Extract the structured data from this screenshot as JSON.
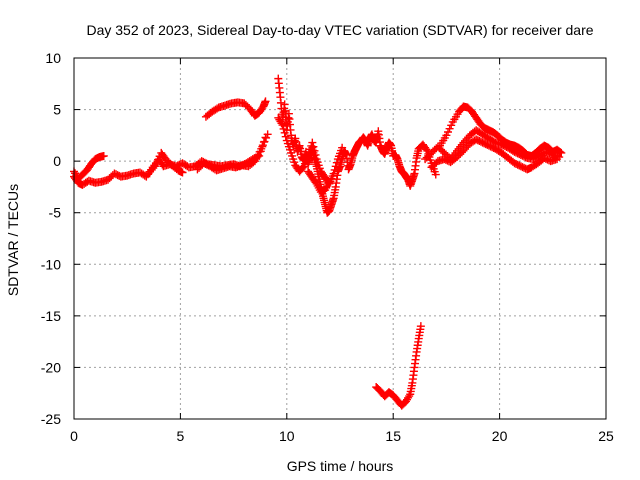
{
  "chart_data": {
    "type": "scatter",
    "title": "Day 352 of 2023, Sidereal Day-to-day VTEC variation (SDTVAR) for receiver dare",
    "xlabel": "GPS time / hours",
    "ylabel": "SDTVAR / TECUs",
    "xlim": [
      0,
      25
    ],
    "ylim": [
      -25,
      10
    ],
    "xticks": [
      0,
      5,
      10,
      15,
      20,
      25
    ],
    "yticks": [
      -25,
      -20,
      -15,
      -10,
      -5,
      0,
      5,
      10
    ],
    "grid": true,
    "marker": "+",
    "series": [
      {
        "name": "SDTVAR",
        "color": "#ff0000",
        "segments": [
          [
            [
              0.0,
              -1.5
            ],
            [
              0.2,
              -2.1
            ],
            [
              0.4,
              -2.3
            ],
            [
              0.7,
              -1.9
            ],
            [
              1.0,
              -2.1
            ],
            [
              1.3,
              -2.0
            ],
            [
              1.6,
              -1.8
            ],
            [
              1.9,
              -1.2
            ],
            [
              2.2,
              -1.5
            ],
            [
              2.5,
              -1.4
            ],
            [
              2.8,
              -1.2
            ],
            [
              3.1,
              -1.1
            ],
            [
              3.4,
              -1.5
            ],
            [
              3.7,
              -0.6
            ],
            [
              4.0,
              0.2
            ],
            [
              4.2,
              -0.5
            ],
            [
              4.5,
              -0.3
            ],
            [
              4.8,
              -0.5
            ],
            [
              5.1,
              -0.2
            ],
            [
              5.4,
              -0.6
            ],
            [
              5.7,
              -0.5
            ],
            [
              6.0,
              0.0
            ],
            [
              6.3,
              -0.3
            ],
            [
              6.6,
              -0.4
            ],
            [
              6.9,
              -0.5
            ],
            [
              7.2,
              -0.4
            ],
            [
              7.5,
              -0.3
            ],
            [
              7.8,
              -0.5
            ],
            [
              8.1,
              -0.2
            ],
            [
              8.4,
              0.2
            ],
            [
              8.7,
              0.5
            ],
            [
              9.0,
              2.3
            ]
          ],
          [
            [
              0.0,
              -1.0
            ],
            [
              0.2,
              -1.7
            ],
            [
              0.4,
              -1.3
            ],
            [
              0.6,
              -0.9
            ],
            [
              0.8,
              -0.3
            ],
            [
              1.0,
              0.2
            ],
            [
              1.2,
              0.4
            ],
            [
              1.4,
              0.5
            ]
          ],
          [
            [
              3.5,
              -1.2
            ],
            [
              3.8,
              -0.5
            ],
            [
              4.1,
              0.8
            ],
            [
              4.3,
              0.2
            ],
            [
              4.6,
              -0.4
            ],
            [
              4.9,
              -0.9
            ],
            [
              5.1,
              -1.1
            ]
          ],
          [
            [
              5.8,
              -0.8
            ],
            [
              6.1,
              -0.2
            ],
            [
              6.4,
              -0.5
            ],
            [
              6.7,
              -0.9
            ],
            [
              7.0,
              -0.7
            ],
            [
              7.3,
              -0.5
            ],
            [
              7.6,
              -0.6
            ],
            [
              7.9,
              -0.4
            ],
            [
              8.2,
              -0.5
            ],
            [
              8.5,
              0.0
            ],
            [
              8.8,
              1.2
            ],
            [
              9.1,
              2.6
            ]
          ],
          [
            [
              6.2,
              4.3
            ],
            [
              6.5,
              4.8
            ],
            [
              6.8,
              5.2
            ],
            [
              7.1,
              5.4
            ],
            [
              7.4,
              5.6
            ],
            [
              7.7,
              5.7
            ],
            [
              8.0,
              5.6
            ],
            [
              8.3,
              5.0
            ],
            [
              8.5,
              4.4
            ],
            [
              8.7,
              4.7
            ],
            [
              8.9,
              5.3
            ],
            [
              9.0,
              5.8
            ]
          ],
          [
            [
              9.6,
              8.0
            ],
            [
              9.7,
              6.2
            ],
            [
              9.8,
              4.0
            ],
            [
              9.9,
              5.5
            ],
            [
              10.0,
              3.0
            ],
            [
              10.1,
              4.6
            ],
            [
              10.2,
              2.5
            ],
            [
              10.3,
              1.4
            ],
            [
              10.4,
              2.2
            ],
            [
              10.5,
              0.9
            ],
            [
              10.6,
              1.5
            ],
            [
              10.7,
              0.4
            ],
            [
              10.8,
              0.1
            ],
            [
              10.9,
              0.9
            ],
            [
              11.0,
              -0.3
            ],
            [
              11.1,
              0.4
            ],
            [
              11.2,
              1.3
            ],
            [
              11.3,
              0.3
            ],
            [
              11.4,
              -0.5
            ],
            [
              11.5,
              -1.5
            ],
            [
              11.6,
              -2.5
            ],
            [
              11.7,
              -3.4
            ],
            [
              11.8,
              -4.2
            ],
            [
              11.9,
              -5.0
            ],
            [
              12.0,
              -4.8
            ],
            [
              12.1,
              -4.2
            ],
            [
              12.2,
              -3.6
            ],
            [
              12.3,
              -2.5
            ],
            [
              12.4,
              -1.0
            ],
            [
              12.5,
              -0.5
            ],
            [
              12.6,
              0.3
            ],
            [
              12.7,
              1.0
            ],
            [
              12.8,
              0.6
            ],
            [
              12.9,
              -0.8
            ],
            [
              13.0,
              -0.3
            ],
            [
              13.1,
              0.5
            ],
            [
              13.2,
              1.0
            ],
            [
              13.3,
              1.4
            ],
            [
              13.4,
              1.8
            ],
            [
              13.5,
              2.0
            ],
            [
              13.6,
              2.3
            ],
            [
              13.7,
              2.0
            ],
            [
              13.8,
              1.5
            ],
            [
              13.9,
              2.2
            ],
            [
              14.0,
              2.6
            ],
            [
              14.1,
              2.0
            ],
            [
              14.2,
              1.8
            ],
            [
              14.3,
              2.9
            ],
            [
              14.4,
              1.5
            ],
            [
              14.5,
              1.0
            ],
            [
              14.6,
              0.7
            ],
            [
              14.7,
              1.3
            ],
            [
              14.8,
              1.8
            ],
            [
              14.9,
              1.5
            ],
            [
              15.0,
              0.5
            ],
            [
              15.1,
              0.6
            ],
            [
              15.2,
              0.2
            ],
            [
              15.3,
              -0.5
            ],
            [
              15.4,
              -1.0
            ],
            [
              15.5,
              -1.2
            ],
            [
              15.6,
              -1.5
            ],
            [
              15.7,
              -1.8
            ],
            [
              15.8,
              -2.4
            ],
            [
              15.9,
              -1.8
            ],
            [
              16.0,
              -1.2
            ],
            [
              16.1,
              0.3
            ],
            [
              16.2,
              1.2
            ],
            [
              16.4,
              1.6
            ],
            [
              16.6,
              1.0
            ],
            [
              16.8,
              -0.2
            ],
            [
              17.0,
              -1.3
            ]
          ],
          [
            [
              9.6,
              4.2
            ],
            [
              9.8,
              3.5
            ],
            [
              10.0,
              2.0
            ],
            [
              10.2,
              0.8
            ],
            [
              10.4,
              -0.4
            ],
            [
              10.6,
              -1.0
            ],
            [
              10.8,
              -0.5
            ],
            [
              11.0,
              0.5
            ],
            [
              11.2,
              1.8
            ],
            [
              11.4,
              0.2
            ],
            [
              11.6,
              -1.0
            ],
            [
              11.8,
              -1.6
            ],
            [
              12.0,
              -2.2
            ],
            [
              12.2,
              -1.2
            ],
            [
              12.4,
              0.2
            ],
            [
              12.6,
              1.3
            ]
          ],
          [
            [
              11.0,
              -1.0
            ],
            [
              11.2,
              -1.6
            ],
            [
              11.4,
              -2.2
            ],
            [
              11.6,
              -3.0
            ],
            [
              11.8,
              -2.8
            ],
            [
              12.0,
              -2.0
            ]
          ],
          [
            [
              16.5,
              0.2
            ],
            [
              16.8,
              0.8
            ],
            [
              17.1,
              1.4
            ],
            [
              17.4,
              0.8
            ],
            [
              17.7,
              0.2
            ],
            [
              18.0,
              1.0
            ],
            [
              18.3,
              1.8
            ],
            [
              18.6,
              2.5
            ],
            [
              18.9,
              3.0
            ],
            [
              19.2,
              2.6
            ],
            [
              19.5,
              2.2
            ],
            [
              19.8,
              1.8
            ],
            [
              20.1,
              1.6
            ],
            [
              20.4,
              1.3
            ],
            [
              20.7,
              0.9
            ],
            [
              21.0,
              0.6
            ],
            [
              21.3,
              0.3
            ],
            [
              21.6,
              0.2
            ],
            [
              21.9,
              0.6
            ],
            [
              22.2,
              0.9
            ],
            [
              22.5,
              0.6
            ],
            [
              22.8,
              0.4
            ]
          ],
          [
            [
              16.8,
              -0.6
            ],
            [
              17.1,
              0.0
            ],
            [
              17.4,
              0.2
            ],
            [
              17.7,
              -0.1
            ],
            [
              18.0,
              0.4
            ],
            [
              18.3,
              1.0
            ],
            [
              18.6,
              1.7
            ],
            [
              18.9,
              2.1
            ],
            [
              19.2,
              1.8
            ],
            [
              19.5,
              1.5
            ],
            [
              19.8,
              1.2
            ],
            [
              20.1,
              0.8
            ],
            [
              20.4,
              0.3
            ],
            [
              20.7,
              -0.2
            ],
            [
              21.0,
              -0.5
            ],
            [
              21.3,
              -0.8
            ],
            [
              21.5,
              -0.6
            ],
            [
              21.8,
              -0.2
            ],
            [
              22.1,
              0.3
            ],
            [
              22.4,
              0.0
            ],
            [
              22.7,
              0.2
            ]
          ],
          [
            [
              17.2,
              1.5
            ],
            [
              17.5,
              2.5
            ],
            [
              17.8,
              3.8
            ],
            [
              18.1,
              4.8
            ],
            [
              18.3,
              5.3
            ],
            [
              18.5,
              5.2
            ],
            [
              18.7,
              4.8
            ],
            [
              18.9,
              4.2
            ],
            [
              19.1,
              3.6
            ],
            [
              19.3,
              3.2
            ],
            [
              19.5,
              3.0
            ],
            [
              19.7,
              2.8
            ],
            [
              19.9,
              2.5
            ],
            [
              20.1,
              2.1
            ],
            [
              20.3,
              1.8
            ],
            [
              20.5,
              1.6
            ],
            [
              20.7,
              1.5
            ],
            [
              20.9,
              1.3
            ],
            [
              21.1,
              1.0
            ],
            [
              21.3,
              0.6
            ],
            [
              21.5,
              0.5
            ],
            [
              21.7,
              0.8
            ],
            [
              21.9,
              1.2
            ],
            [
              22.1,
              1.5
            ],
            [
              22.3,
              1.3
            ],
            [
              22.5,
              0.9
            ],
            [
              22.7,
              1.1
            ],
            [
              22.9,
              0.8
            ]
          ],
          [
            [
              14.2,
              -21.9
            ],
            [
              14.4,
              -22.3
            ],
            [
              14.6,
              -22.8
            ],
            [
              14.8,
              -22.4
            ],
            [
              15.0,
              -22.7
            ],
            [
              15.2,
              -23.2
            ],
            [
              15.4,
              -23.7
            ],
            [
              15.6,
              -23.3
            ],
            [
              15.8,
              -22.6
            ],
            [
              15.9,
              -21.5
            ],
            [
              16.0,
              -20.0
            ],
            [
              16.1,
              -18.5
            ],
            [
              16.2,
              -17.2
            ],
            [
              16.3,
              -16.0
            ]
          ]
        ]
      }
    ]
  }
}
